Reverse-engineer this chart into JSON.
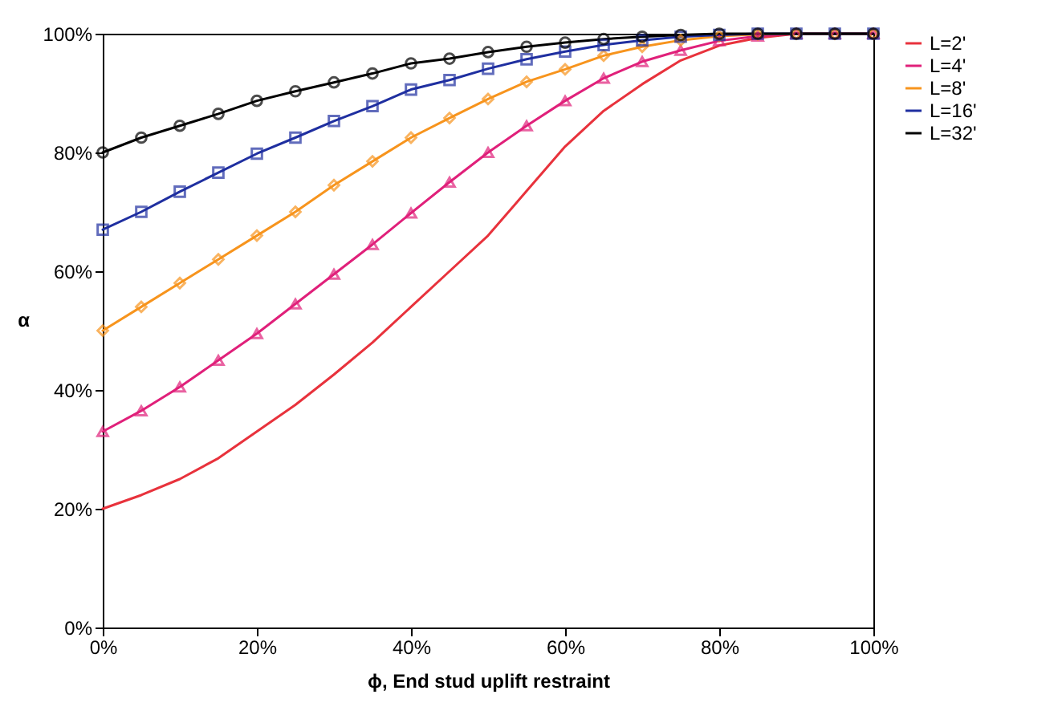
{
  "chart_data": {
    "type": "line",
    "xlabel": "ϕ, End stud uplift restraint",
    "ylabel": "α",
    "x": [
      0,
      5,
      10,
      15,
      20,
      25,
      30,
      35,
      40,
      45,
      50,
      55,
      60,
      65,
      70,
      75,
      80,
      85,
      90,
      95,
      100
    ],
    "series": [
      {
        "name": "L=2'",
        "color": "#e8323c",
        "marker": "none",
        "values": [
          20,
          22.3,
          25,
          28.5,
          33,
          37.5,
          42.6,
          48,
          54,
          60,
          66,
          73.5,
          81,
          87,
          91.5,
          95.5,
          98,
          99.3,
          100,
          100,
          100
        ]
      },
      {
        "name": "L=4'",
        "color": "#e0207a",
        "marker": "triangle",
        "values": [
          33,
          36.5,
          40.5,
          45,
          49.5,
          54.5,
          59.5,
          64.5,
          69.8,
          75,
          80,
          84.5,
          88.7,
          92.5,
          95.3,
          97.2,
          98.8,
          99.6,
          100,
          100,
          100
        ]
      },
      {
        "name": "L=8'",
        "color": "#f7941d",
        "marker": "diamond",
        "values": [
          50,
          54,
          58,
          62,
          66,
          70,
          74.5,
          78.5,
          82.5,
          85.8,
          89,
          91.9,
          94,
          96.3,
          97.8,
          98.9,
          99.6,
          99.9,
          100,
          100,
          100
        ]
      },
      {
        "name": "L=16'",
        "color": "#1f2fa0",
        "marker": "square",
        "values": [
          67,
          70,
          73.4,
          76.6,
          79.8,
          82.5,
          85.3,
          87.8,
          90.6,
          92.2,
          94.1,
          95.7,
          97,
          98.1,
          98.9,
          99.5,
          99.8,
          100,
          100,
          100,
          100
        ]
      },
      {
        "name": "L=32'",
        "color": "#000000",
        "marker": "circle",
        "values": [
          80,
          82.5,
          84.5,
          86.5,
          88.7,
          90.3,
          91.8,
          93.3,
          95,
          95.8,
          96.9,
          97.8,
          98.5,
          99.1,
          99.5,
          99.8,
          100,
          100,
          100,
          100,
          100
        ]
      }
    ],
    "xlim": [
      0,
      100
    ],
    "ylim": [
      0,
      100
    ],
    "xticks": [
      {
        "value": 0,
        "label": "0%"
      },
      {
        "value": 20,
        "label": "20%"
      },
      {
        "value": 40,
        "label": "40%"
      },
      {
        "value": 60,
        "label": "60%"
      },
      {
        "value": 80,
        "label": "80%"
      },
      {
        "value": 100,
        "label": "100%"
      }
    ],
    "yticks": [
      {
        "value": 0,
        "label": "0%"
      },
      {
        "value": 20,
        "label": "20%"
      },
      {
        "value": 40,
        "label": "40%"
      },
      {
        "value": 60,
        "label": "60%"
      },
      {
        "value": 80,
        "label": "80%"
      },
      {
        "value": 100,
        "label": "100%"
      }
    ],
    "legend": "right",
    "grid": false,
    "line_style": "solid"
  }
}
